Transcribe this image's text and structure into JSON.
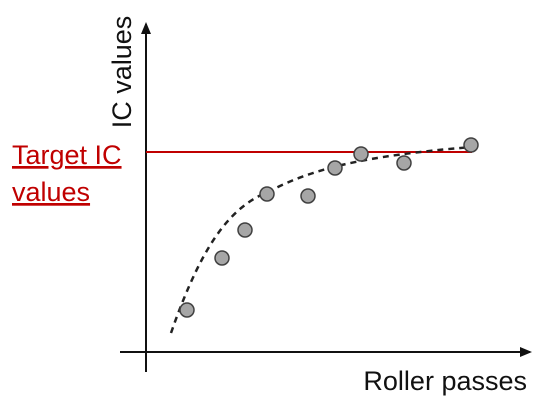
{
  "diagram": {
    "y_axis_label": "IC values",
    "x_axis_label": "Roller passes",
    "target_label_line1": "Target IC",
    "target_label_line2": "values"
  },
  "colors": {
    "target": "#c00000",
    "axis": "#111111",
    "point_fill": "#a6a6a6",
    "point_stroke": "#404040",
    "curve": "#222222"
  }
}
